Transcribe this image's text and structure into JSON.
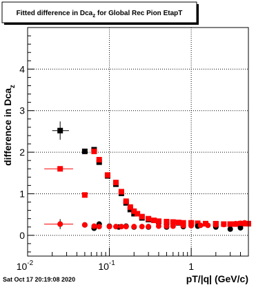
{
  "chart_data": {
    "type": "scatter",
    "title": "Fitted difference in Dca",
    "title_subscript": "z",
    "title_suffix": " for Global Rec Pion EtapT",
    "ylabel": "difference in Dca",
    "ylabel_subscript": "z",
    "xlabel": "pT/|q| (GeV/c)",
    "x_scale": "log",
    "xlim": [
      0.01,
      5.0
    ],
    "ylim": [
      -0.5,
      5.0
    ],
    "grid": true,
    "x_ticks": [
      {
        "value": 0.01,
        "label": "10",
        "exp": "-2"
      },
      {
        "value": 0.1,
        "label": "10",
        "exp": "-1"
      },
      {
        "value": 1,
        "label": "1",
        "exp": ""
      }
    ],
    "y_ticks": [
      {
        "value": 0,
        "label": "0"
      },
      {
        "value": 1,
        "label": "1"
      },
      {
        "value": 2,
        "label": "2"
      },
      {
        "value": 3,
        "label": "3"
      },
      {
        "value": 4,
        "label": "4"
      }
    ],
    "series": [
      {
        "marker": "square",
        "color": "#000000",
        "x": [
          0.025,
          0.05,
          0.065,
          0.075,
          0.095,
          0.12,
          0.14,
          0.16,
          0.18,
          0.2,
          0.25,
          0.3,
          0.4,
          0.5,
          0.7,
          1.0,
          1.5,
          2.0,
          3.0,
          4.0,
          5.0
        ],
        "y": [
          2.52,
          2.02,
          2.06,
          1.76,
          1.43,
          1.23,
          1.01,
          0.78,
          0.62,
          0.52,
          0.42,
          0.38,
          0.33,
          0.31,
          0.3,
          0.29,
          0.28,
          0.27,
          0.27,
          0.28,
          0.28
        ],
        "xerr": [
          [
            0.02,
            0.032
          ],
          null,
          null,
          null,
          null,
          null,
          null,
          null,
          null,
          null,
          null,
          null,
          null,
          null,
          null,
          null,
          null,
          null,
          null,
          null,
          null
        ],
        "yerr": [
          0.22,
          null,
          null,
          null,
          null,
          null,
          null,
          null,
          null,
          null,
          null,
          null,
          null,
          null,
          null,
          null,
          null,
          null,
          null,
          null,
          null
        ]
      },
      {
        "marker": "square",
        "color": "#ff0000",
        "x": [
          0.025,
          0.05,
          0.065,
          0.075,
          0.095,
          0.12,
          0.14,
          0.16,
          0.18,
          0.2,
          0.22,
          0.25,
          0.3,
          0.35,
          0.4,
          0.5,
          0.6,
          0.7,
          0.8,
          1.0,
          1.2,
          1.5,
          2.0,
          2.5,
          3.0,
          3.5,
          4.0,
          4.5,
          5.0
        ],
        "y": [
          1.6,
          0.97,
          2.02,
          1.82,
          1.45,
          1.27,
          1.05,
          0.82,
          0.68,
          0.58,
          0.52,
          0.45,
          0.4,
          0.36,
          0.34,
          0.33,
          0.32,
          0.31,
          0.3,
          0.3,
          0.29,
          0.28,
          0.28,
          0.27,
          0.27,
          0.27,
          0.28,
          0.28,
          0.28
        ],
        "xerr": [
          [
            0.016,
            0.036
          ],
          null,
          null,
          null,
          null,
          null,
          null,
          null,
          null,
          null,
          null,
          null,
          null,
          null,
          null,
          null,
          null,
          null,
          null,
          null,
          null,
          null,
          null,
          null,
          null,
          null,
          null,
          null,
          null
        ],
        "yerr": [
          null,
          null,
          null,
          null,
          null,
          null,
          null,
          null,
          null,
          null,
          null,
          null,
          null,
          null,
          null,
          null,
          null,
          null,
          null,
          null,
          null,
          null,
          null,
          null,
          null,
          null,
          null,
          null,
          null
        ]
      },
      {
        "marker": "circle",
        "color": "#000000",
        "x": [
          0.025,
          0.05,
          0.065,
          0.075,
          0.1,
          0.13,
          0.16,
          0.2,
          0.3,
          0.5,
          0.8,
          1.2,
          2.0,
          3.0,
          4.0
        ],
        "y": [
          0.27,
          0.25,
          0.17,
          0.27,
          0.22,
          0.2,
          0.22,
          0.2,
          0.2,
          0.2,
          0.21,
          0.22,
          0.2,
          0.15,
          0.18
        ],
        "xerr": [
          [
            0.016,
            0.036
          ],
          null,
          null,
          null,
          null,
          null,
          null,
          null,
          null,
          null,
          null,
          null,
          null,
          null,
          null
        ],
        "yerr": [
          0.12,
          null,
          null,
          null,
          null,
          null,
          null,
          null,
          null,
          null,
          null,
          null,
          null,
          null,
          null
        ]
      },
      {
        "marker": "circle",
        "color": "#ff0000",
        "x": [
          0.025,
          0.05,
          0.065,
          0.075,
          0.1,
          0.12,
          0.14,
          0.16,
          0.2,
          0.25,
          0.3,
          0.4,
          0.5,
          0.6,
          0.8,
          1.0,
          1.3,
          1.6,
          2.0,
          2.5,
          3.0,
          3.5,
          4.0,
          4.5
        ],
        "y": [
          0.27,
          0.25,
          0.22,
          0.21,
          0.21,
          0.21,
          0.21,
          0.21,
          0.21,
          0.21,
          0.21,
          0.22,
          0.22,
          0.22,
          0.23,
          0.23,
          0.24,
          0.24,
          0.25,
          0.26,
          0.27,
          0.28,
          0.29,
          0.3
        ],
        "xerr": [
          [
            0.016,
            0.036
          ],
          null,
          null,
          null,
          null,
          null,
          null,
          null,
          null,
          null,
          null,
          null,
          null,
          null,
          null,
          null,
          null,
          null,
          null,
          null,
          null,
          null,
          null,
          null
        ],
        "yerr": [
          null,
          null,
          null,
          null,
          null,
          null,
          null,
          null,
          null,
          null,
          null,
          null,
          null,
          null,
          null,
          null,
          null,
          null,
          null,
          null,
          null,
          null,
          null,
          null
        ]
      }
    ]
  },
  "footer": {
    "timestamp": "Sat Oct 17 20:19:08 2020"
  }
}
